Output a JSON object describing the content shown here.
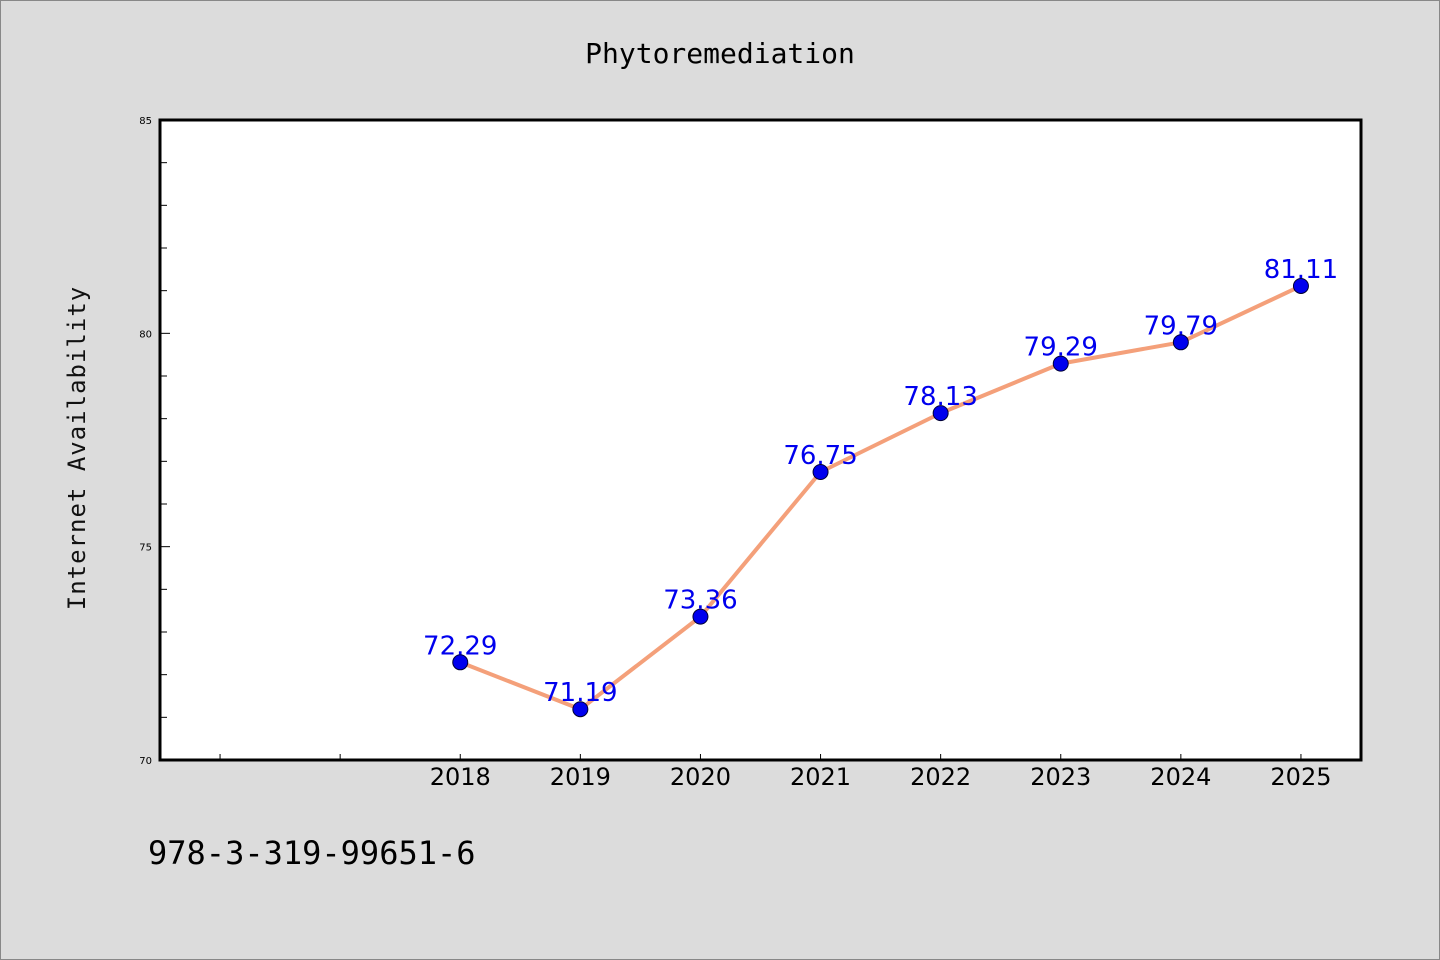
{
  "chart_data": {
    "type": "line",
    "title": "Phytoremediation",
    "xlabel": "",
    "ylabel": "Internet Availability",
    "x": [
      2018,
      2019,
      2020,
      2021,
      2022,
      2023,
      2024,
      2025
    ],
    "xtick_labels": [
      "2018",
      "2019",
      "2020",
      "2021",
      "2022",
      "2023",
      "2024",
      "2025"
    ],
    "series": [
      {
        "values": [
          72.29,
          71.19,
          73.36,
          76.75,
          78.13,
          79.29,
          79.79,
          81.11
        ],
        "labels": [
          "72.29",
          "71.19",
          "73.36",
          "76.75",
          "78.13",
          "79.29",
          "79.79",
          "81.11"
        ]
      }
    ],
    "xlim": [
      2015.5,
      2025.5
    ],
    "ylim": [
      70,
      85
    ],
    "yticks": [
      70,
      75,
      80,
      85
    ],
    "ytick_labels": [
      "70",
      "75",
      "80",
      "85"
    ],
    "grid": false,
    "colors": {
      "line": "#f4a07a",
      "marker": "#0000ee",
      "label": "#0000ee",
      "background": "#dcdcdc",
      "plot_bg": "#ffffff"
    }
  },
  "footer": {
    "isbn": "978-3-319-99651-6"
  }
}
